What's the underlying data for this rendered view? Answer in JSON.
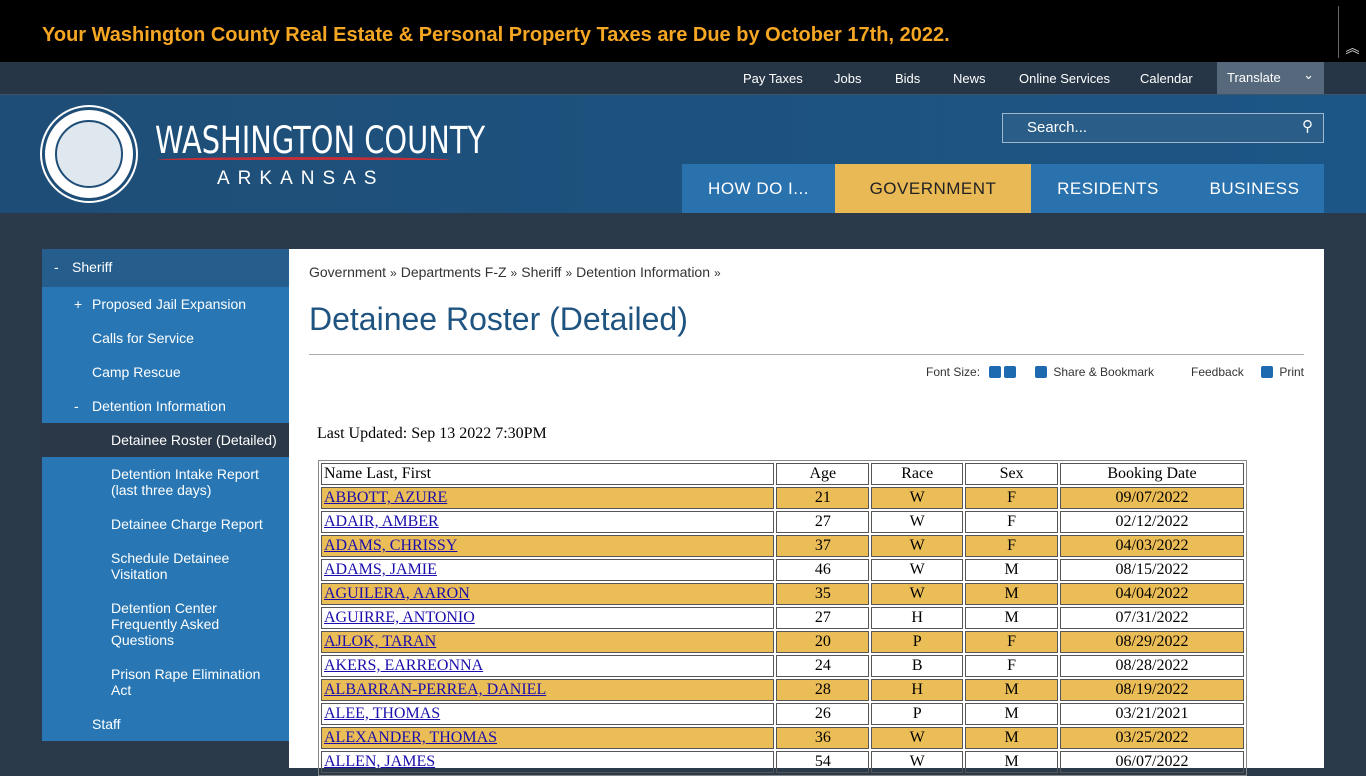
{
  "alert": "Your Washington County Real Estate & Personal Property Taxes are Due by October 17th, 2022.",
  "top_links": [
    "Pay Taxes",
    "Jobs",
    "Bids",
    "News",
    "Online Services",
    "Calendar"
  ],
  "translate": "Translate",
  "logo": {
    "name": "WASHINGTON COUNTY",
    "state": "ARKANSAS"
  },
  "search": "Search...",
  "main_nav": [
    "HOW DO I...",
    "GOVERNMENT",
    "RESIDENTS",
    "BUSINESS"
  ],
  "sidebar": [
    {
      "marker": "-",
      "label": "Sheriff"
    },
    {
      "marker": "+",
      "label": "Proposed Jail Expansion"
    },
    {
      "label": "Calls for Service"
    },
    {
      "label": "Camp Rescue"
    },
    {
      "marker": "-",
      "label": "Detention Information"
    },
    {
      "label": "Detainee Roster (Detailed)"
    },
    {
      "label": "Detention Intake Report (last three days)"
    },
    {
      "label": "Detainee Charge Report"
    },
    {
      "label": "Schedule Detainee Visitation"
    },
    {
      "label": "Detention Center Frequently Asked Questions"
    },
    {
      "label": "Prison Rape Elimination Act"
    },
    {
      "label": "Staff"
    }
  ],
  "breadcrumb": {
    "items": [
      "Government",
      "Departments F-Z",
      "Sheriff",
      "Detention Information"
    ],
    "separator": "»"
  },
  "page_title": "Detainee Roster (Detailed)",
  "tools": {
    "font_size": "Font Size:",
    "share": "Share & Bookmark",
    "feedback": "Feedback",
    "print": "Print"
  },
  "last_updated": "Last Updated: Sep 13 2022 7:30PM",
  "table": {
    "headers": [
      "Name Last, First",
      "Age",
      "Race",
      "Sex",
      "Booking Date"
    ],
    "rows": [
      [
        "ABBOTT, AZURE",
        21,
        "W",
        "F",
        "09/07/2022"
      ],
      [
        "ADAIR, AMBER",
        27,
        "W",
        "F",
        "02/12/2022"
      ],
      [
        "ADAMS, CHRISSY",
        37,
        "W",
        "F",
        "04/03/2022"
      ],
      [
        "ADAMS, JAMIE",
        46,
        "W",
        "M",
        "08/15/2022"
      ],
      [
        "AGUILERA, AARON",
        35,
        "W",
        "M",
        "04/04/2022"
      ],
      [
        "AGUIRRE, ANTONIO",
        27,
        "H",
        "M",
        "07/31/2022"
      ],
      [
        "AJLOK, TARAN",
        20,
        "P",
        "F",
        "08/29/2022"
      ],
      [
        "AKERS, EARREONNA",
        24,
        "B",
        "F",
        "08/28/2022"
      ],
      [
        "ALBARRAN-PERREA, DANIEL",
        28,
        "H",
        "M",
        "08/19/2022"
      ],
      [
        "ALEE, THOMAS",
        26,
        "P",
        "M",
        "03/21/2021"
      ],
      [
        "ALEXANDER, THOMAS",
        36,
        "W",
        "M",
        "03/25/2022"
      ],
      [
        "ALLEN, JAMES",
        54,
        "W",
        "M",
        "06/07/2022"
      ]
    ]
  }
}
